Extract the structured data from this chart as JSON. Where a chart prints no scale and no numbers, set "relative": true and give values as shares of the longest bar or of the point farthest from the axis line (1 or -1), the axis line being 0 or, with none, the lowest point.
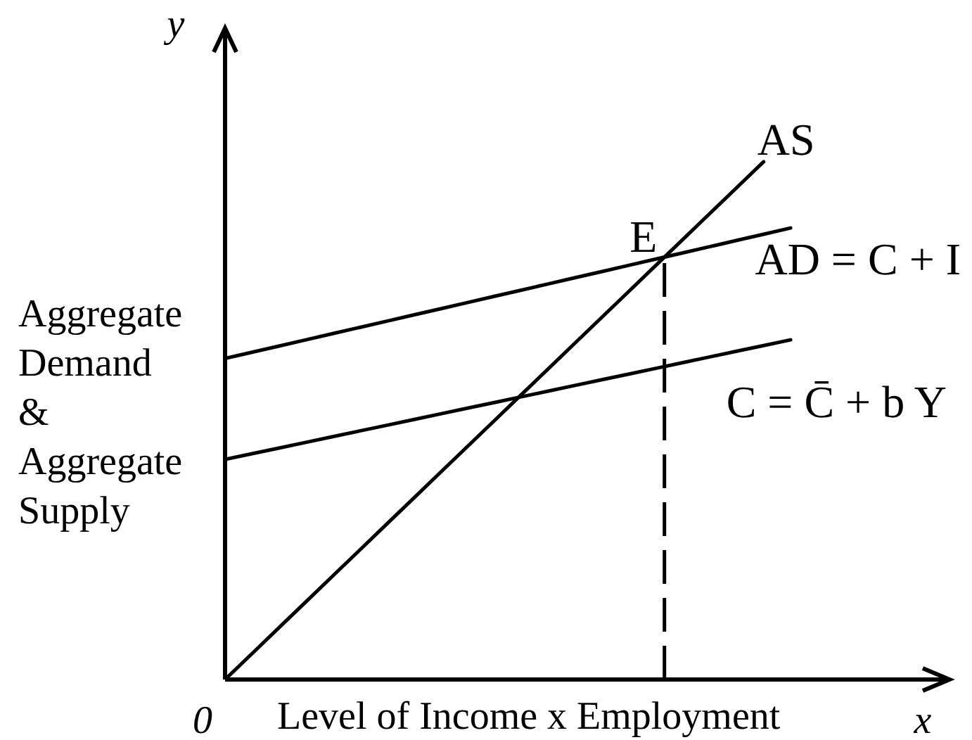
{
  "chart_data": {
    "type": "line",
    "relative": true,
    "xlabel": "Level of Income x Employment",
    "ylabel": "Aggregate Demand & Aggregate Supply",
    "categories": [
      null,
      null,
      null,
      null,
      null,
      null,
      null,
      null,
      null,
      null,
      null,
      null,
      null,
      null,
      null,
      null,
      null,
      null,
      null,
      null,
      null,
      null
    ],
    "series": [
      {
        "name": "AS",
        "color": "#000000",
        "values": [
          0,
          0.05,
          0.1,
          0.15,
          0.2,
          0.25,
          0.3,
          0.35,
          0.4,
          0.45,
          0.5,
          0.55,
          0.6,
          0.65,
          0.7,
          0.75,
          0.8,
          0.85,
          0.9,
          0.95,
          1,
          null
        ]
      },
      {
        "name": "AD = C + I",
        "color": "#000000",
        "values": [
          0.62,
          0.632,
          0.644,
          0.656,
          0.668,
          0.68,
          0.692,
          0.704,
          0.716,
          0.728,
          0.74,
          0.752,
          0.764,
          0.776,
          0.788,
          0.8,
          0.812,
          0.824,
          0.836,
          0.848,
          0.86,
          0.872
        ]
      },
      {
        "name": "C = C̄ + b Y",
        "color": "#000000",
        "values": [
          0.425,
          0.436,
          0.447,
          0.458,
          0.469,
          0.48,
          0.491,
          0.502,
          0.513,
          0.524,
          0.535,
          0.546,
          0.557,
          0.568,
          0.579,
          0.59,
          0.601,
          0.612,
          0.623,
          0.634,
          0.645,
          0.656
        ]
      }
    ],
    "annotations": [
      "y",
      "x",
      "0",
      "E"
    ]
  }
}
